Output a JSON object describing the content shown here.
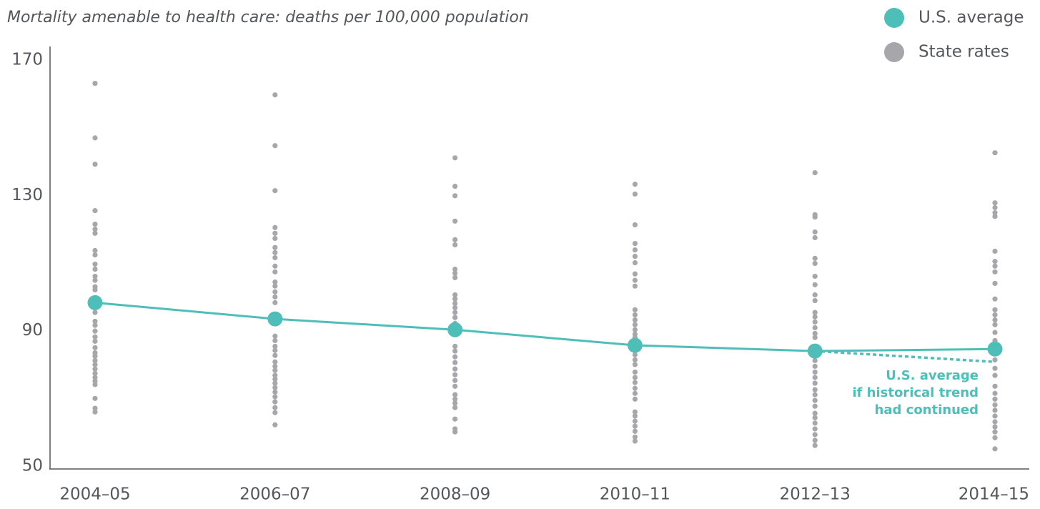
{
  "chart_data": {
    "type": "line",
    "title": "Mortality amenable to health care: deaths per 100,000 population",
    "categories": [
      "2004–05",
      "2006–07",
      "2008–09",
      "2010–11",
      "2012–13",
      "2014–15"
    ],
    "ylim": [
      50,
      170
    ],
    "yticks": [
      50,
      90,
      130,
      170
    ],
    "legend": "top-right",
    "series": [
      {
        "name": "U.S. average",
        "color": "#4dbfb8",
        "values": [
          98.3,
          93.5,
          90.3,
          85.7,
          84.0,
          84.6
        ]
      },
      {
        "name": "State rates",
        "color": "#a7a6ab",
        "values": [
          [
            163.1,
            147.0,
            139.2,
            125.5,
            121.5,
            120.0,
            118.8,
            113.7,
            112.4,
            109.7,
            108.2,
            106.1,
            104.9,
            103.0,
            102.1,
            99.6,
            98.9,
            97.9,
            96.8,
            95.4,
            92.8,
            91.6,
            89.9,
            88.2,
            86.9,
            85.0,
            83.5,
            82.5,
            81.2,
            80.0,
            78.7,
            77.4,
            76.2,
            75.1,
            74.1,
            70.0,
            67.1,
            66.0
          ],
          [
            159.7,
            144.7,
            131.4,
            120.5,
            118.8,
            117.3,
            114.6,
            113.1,
            111.6,
            109.1,
            107.4,
            104.4,
            103.2,
            101.5,
            100.0,
            98.3,
            94.7,
            92.2,
            88.4,
            87.1,
            85.4,
            84.2,
            82.7,
            80.8,
            79.5,
            78.3,
            76.8,
            75.7,
            74.5,
            73.2,
            71.9,
            70.5,
            69.0,
            67.3,
            65.8,
            62.2
          ],
          [
            141.1,
            132.7,
            129.9,
            122.4,
            116.9,
            115.4,
            108.2,
            107.0,
            105.7,
            100.6,
            99.4,
            98.1,
            96.8,
            95.4,
            93.9,
            92.2,
            85.4,
            84.0,
            82.3,
            80.6,
            78.7,
            77.0,
            75.3,
            73.6,
            71.1,
            69.8,
            68.6,
            67.3,
            63.9,
            61.0,
            60.1
          ],
          [
            133.3,
            130.4,
            121.3,
            115.8,
            113.9,
            112.0,
            110.1,
            106.8,
            104.9,
            103.2,
            96.2,
            94.7,
            93.2,
            91.8,
            90.3,
            89.0,
            88.0,
            82.9,
            81.4,
            80.0,
            77.8,
            76.2,
            74.7,
            73.0,
            71.5,
            69.8,
            66.0,
            64.8,
            63.3,
            61.8,
            60.3,
            58.6,
            57.4
          ],
          [
            136.7,
            124.3,
            123.6,
            119.2,
            117.5,
            111.4,
            109.9,
            106.1,
            103.6,
            100.6,
            98.9,
            95.4,
            94.1,
            92.6,
            90.9,
            89.2,
            88.0,
            85.4,
            81.2,
            79.5,
            77.8,
            76.2,
            74.5,
            72.6,
            71.1,
            69.4,
            67.7,
            65.6,
            64.3,
            62.7,
            61.0,
            59.3,
            57.6,
            56.1
          ],
          [
            142.6,
            127.8,
            126.4,
            124.9,
            123.8,
            113.5,
            110.5,
            109.1,
            107.4,
            104.0,
            99.4,
            96.2,
            94.7,
            93.2,
            91.8,
            89.5,
            87.1,
            81.4,
            78.9,
            76.8,
            73.6,
            71.5,
            69.8,
            68.1,
            66.5,
            64.8,
            63.1,
            61.6,
            60.1,
            58.4,
            55.1
          ]
        ]
      }
    ],
    "trend": {
      "color": "#4dbfb8",
      "annotation": [
        "U.S. average",
        "if historical trend",
        "had continued"
      ],
      "values": [
        null,
        null,
        null,
        null,
        84.0,
        80.8
      ]
    }
  }
}
